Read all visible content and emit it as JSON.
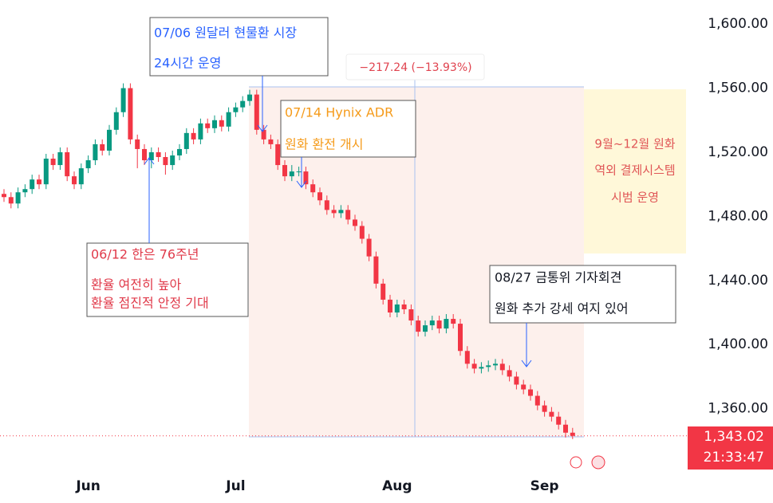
{
  "chart_data": {
    "type": "candlestick",
    "categories": [
      null,
      null,
      null,
      null,
      null,
      null,
      null,
      null,
      null,
      null,
      null,
      null,
      "Jun",
      null,
      null,
      null,
      null,
      null,
      null,
      null,
      null,
      null,
      null,
      null,
      null,
      null,
      null,
      null,
      null,
      null,
      null,
      null,
      null,
      "Jul",
      null,
      null,
      null,
      null,
      null,
      null,
      null,
      null,
      null,
      null,
      null,
      null,
      null,
      null,
      null,
      null,
      null,
      null,
      null,
      null,
      null,
      null,
      "Aug",
      null,
      null,
      null,
      null,
      null,
      null,
      null,
      null,
      null,
      null,
      null,
      null,
      null,
      null,
      null,
      null,
      null,
      null,
      null,
      null,
      "Sep",
      null,
      null,
      null,
      null
    ],
    "open": [
      1494,
      1492,
      1488,
      1495,
      1497,
      1503,
      1500,
      1516,
      1512,
      1520,
      1505,
      1500,
      1510,
      1515,
      1525,
      1521,
      1534,
      1545,
      1560,
      1528,
      1522,
      1515,
      1520,
      1517,
      1512,
      1518,
      1522,
      1532,
      1528,
      1538,
      1535,
      1540,
      1536,
      1545,
      1548,
      1552,
      1556,
      1534,
      1528,
      1525,
      1512,
      1505,
      1508,
      1508,
      1500,
      1495,
      1490,
      1484,
      1482,
      1484,
      1478,
      1474,
      1466,
      1455,
      1438,
      1428,
      1420,
      1425,
      1422,
      1415,
      1408,
      1412,
      1415,
      1410,
      1416,
      1413,
      1396,
      1388,
      1385,
      1386,
      1387,
      1388,
      1384,
      1380,
      1375,
      1372,
      1368,
      1362,
      1358,
      1355,
      1350,
      1345
    ],
    "high": [
      1497,
      1495,
      1498,
      1500,
      1506,
      1506,
      1519,
      1519,
      1523,
      1523,
      1508,
      1513,
      1518,
      1528,
      1528,
      1537,
      1548,
      1563,
      1563,
      1531,
      1525,
      1523,
      1523,
      1520,
      1521,
      1525,
      1535,
      1535,
      1541,
      1541,
      1543,
      1543,
      1548,
      1551,
      1555,
      1559,
      1559,
      1537,
      1531,
      1528,
      1515,
      1512,
      1511,
      1511,
      1503,
      1498,
      1493,
      1487,
      1487,
      1487,
      1481,
      1477,
      1469,
      1458,
      1441,
      1431,
      1428,
      1428,
      1425,
      1418,
      1415,
      1418,
      1418,
      1419,
      1419,
      1416,
      1399,
      1391,
      1389,
      1390,
      1391,
      1391,
      1387,
      1383,
      1378,
      1375,
      1371,
      1365,
      1361,
      1358,
      1353,
      1348
    ],
    "low": [
      1489,
      1485,
      1485,
      1492,
      1494,
      1497,
      1497,
      1509,
      1509,
      1502,
      1497,
      1497,
      1507,
      1512,
      1518,
      1518,
      1531,
      1542,
      1525,
      1510,
      1512,
      1510,
      1514,
      1506,
      1509,
      1515,
      1519,
      1525,
      1525,
      1532,
      1532,
      1533,
      1533,
      1542,
      1545,
      1549,
      1531,
      1525,
      1522,
      1509,
      1502,
      1502,
      1505,
      1497,
      1492,
      1487,
      1481,
      1479,
      1479,
      1475,
      1471,
      1463,
      1452,
      1435,
      1425,
      1417,
      1417,
      1419,
      1412,
      1405,
      1405,
      1409,
      1407,
      1407,
      1410,
      1393,
      1385,
      1382,
      1382,
      1383,
      1384,
      1381,
      1377,
      1372,
      1369,
      1365,
      1359,
      1355,
      1352,
      1347,
      1342,
      1341
    ],
    "close": [
      1492,
      1488,
      1495,
      1497,
      1503,
      1500,
      1516,
      1512,
      1520,
      1505,
      1500,
      1510,
      1515,
      1525,
      1521,
      1534,
      1545,
      1560,
      1528,
      1522,
      1515,
      1520,
      1517,
      1512,
      1518,
      1522,
      1532,
      1528,
      1538,
      1535,
      1540,
      1536,
      1545,
      1548,
      1552,
      1556,
      1534,
      1528,
      1525,
      1512,
      1505,
      1508,
      1508,
      1500,
      1495,
      1490,
      1484,
      1482,
      1484,
      1478,
      1474,
      1466,
      1455,
      1438,
      1428,
      1420,
      1425,
      1422,
      1415,
      1408,
      1412,
      1415,
      1410,
      1416,
      1413,
      1396,
      1388,
      1385,
      1386,
      1387,
      1388,
      1384,
      1380,
      1375,
      1372,
      1368,
      1362,
      1358,
      1355,
      1350,
      1345,
      1343.02
    ],
    "up_color": "#089981",
    "down_color": "#f23645",
    "ylim": [
      1324,
      1615
    ],
    "yticks": [
      {
        "value": 1360,
        "label": "1,360.00"
      },
      {
        "value": 1400,
        "label": "1,400.00"
      },
      {
        "value": 1440,
        "label": "1,440.00"
      },
      {
        "value": 1480,
        "label": "1,480.00"
      },
      {
        "value": 1520,
        "label": "1,520.00"
      },
      {
        "value": 1560,
        "label": "1,560.00"
      },
      {
        "value": 1600,
        "label": "1,600.00"
      }
    ],
    "last_price": {
      "value": 1343.02,
      "label": "1,343.02"
    },
    "last_time": "21:33:47",
    "measure_label": "−217.24 (−13.93%)",
    "annotations": [
      {
        "lines": [
          "07/06 원달러 현물환 시장",
          "24시간 운영"
        ]
      },
      {
        "lines": [
          "07/14 Hynix ADR",
          "원화 환전 개시"
        ]
      },
      {
        "lines": [
          "06/12 한은 76주년",
          "환율 여전히 높아",
          "환율 점진적 안정 기대"
        ]
      },
      {
        "lines": [
          "08/27 금통위 기자회견",
          "원화 추가 강세 여지 있어"
        ]
      },
      {
        "lines": [
          "9월~12월 원화",
          "역외 결제시스템",
          "시범 운영"
        ]
      }
    ]
  }
}
